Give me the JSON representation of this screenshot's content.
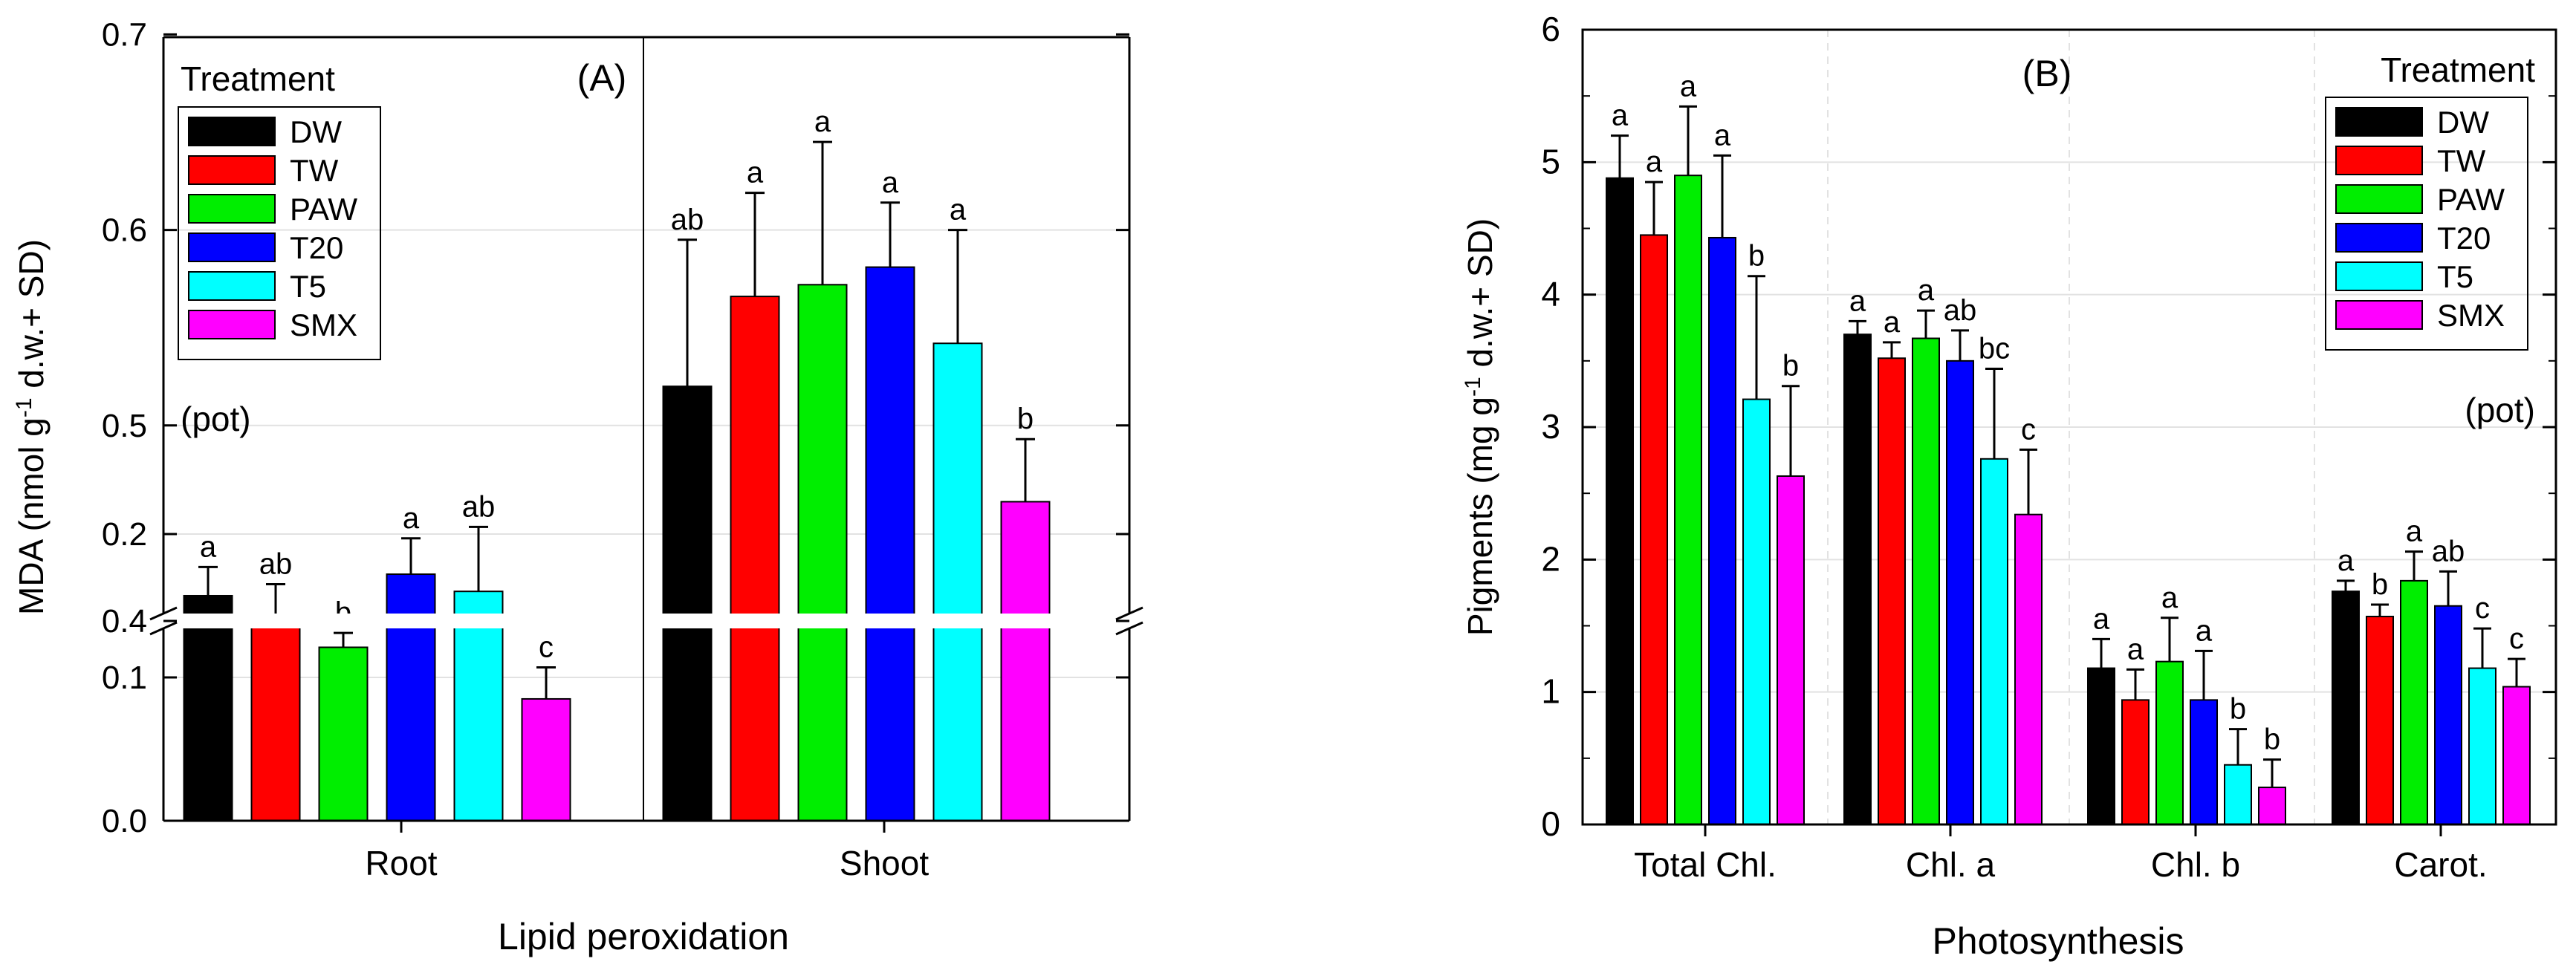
{
  "colors": {
    "DW": "#000000",
    "TW": "#ff0000",
    "PAW": "#00ee00",
    "T20": "#0000ff",
    "T5": "#00ffff",
    "SMX": "#ff00ff"
  },
  "chart_data": [
    {
      "id": "A",
      "type": "bar",
      "panel_label": "(A)",
      "note": "(pot)",
      "title": "",
      "xlabel": "Lipid peroxidation",
      "ylabel_parts": [
        "MDA (nmol g",
        "-1",
        " d.w.+ SD)"
      ],
      "y_broken_axis": {
        "lower_range": [
          0,
          0.27
        ],
        "upper_range": [
          0.4,
          0.7
        ]
      },
      "lower_ticks": [
        "0.0",
        "0.1",
        "0.2"
      ],
      "upper_ticks": [
        "0.4",
        "0.5",
        "0.6",
        "0.7"
      ],
      "legend": {
        "title": "Treatment",
        "placement": "top-left",
        "entries": [
          "DW",
          "TW",
          "PAW",
          "T20",
          "T5",
          "SMX"
        ]
      },
      "categories": [
        "Root",
        "Shoot"
      ],
      "series": [
        {
          "name": "DW",
          "values": [
            0.157,
            0.52
          ],
          "errors": [
            0.02,
            0.075
          ],
          "letters": [
            "a",
            "ab"
          ]
        },
        {
          "name": "TW",
          "values": [
            0.14,
            0.566
          ],
          "errors": [
            0.025,
            0.053
          ],
          "letters": [
            "ab",
            "a"
          ]
        },
        {
          "name": "PAW",
          "values": [
            0.121,
            0.572
          ],
          "errors": [
            0.01,
            0.073
          ],
          "letters": [
            "b",
            "a"
          ]
        },
        {
          "name": "T20",
          "values": [
            0.172,
            0.581
          ],
          "errors": [
            0.025,
            0.033
          ],
          "letters": [
            "a",
            "a"
          ]
        },
        {
          "name": "T5",
          "values": [
            0.16,
            0.542
          ],
          "errors": [
            0.045,
            0.058
          ],
          "letters": [
            "ab",
            "a"
          ]
        },
        {
          "name": "SMX",
          "values": [
            0.085,
            0.461
          ],
          "errors": [
            0.022,
            0.032
          ],
          "letters": [
            "c",
            "b"
          ]
        }
      ]
    },
    {
      "id": "B",
      "type": "bar",
      "panel_label": "(B)",
      "note": "(pot)",
      "title": "",
      "xlabel": "Photosynthesis",
      "ylabel_parts": [
        "Pigments (mg g",
        "-1",
        " d.w.+ SD)"
      ],
      "ylim": [
        0,
        6
      ],
      "ticks": [
        "0",
        "1",
        "2",
        "3",
        "4",
        "5",
        "6"
      ],
      "legend": {
        "title": "Treatment",
        "placement": "top-right",
        "entries": [
          "DW",
          "TW",
          "PAW",
          "T20",
          "T5",
          "SMX"
        ]
      },
      "categories": [
        "Total Chl.",
        "Chl. a",
        "Chl. b",
        "Carot."
      ],
      "series": [
        {
          "name": "DW",
          "values": [
            4.88,
            3.7,
            1.18,
            1.76
          ],
          "errors": [
            0.32,
            0.1,
            0.22,
            0.08
          ],
          "letters": [
            "a",
            "a",
            "a",
            "a"
          ]
        },
        {
          "name": "TW",
          "values": [
            4.45,
            3.52,
            0.94,
            1.57
          ],
          "errors": [
            0.4,
            0.12,
            0.23,
            0.09
          ],
          "letters": [
            "a",
            "a",
            "a",
            "b"
          ]
        },
        {
          "name": "PAW",
          "values": [
            4.9,
            3.67,
            1.23,
            1.84
          ],
          "errors": [
            0.52,
            0.21,
            0.33,
            0.22
          ],
          "letters": [
            "a",
            "a",
            "a",
            "a"
          ]
        },
        {
          "name": "T20",
          "values": [
            4.43,
            3.5,
            0.94,
            1.65
          ],
          "errors": [
            0.62,
            0.23,
            0.37,
            0.26
          ],
          "letters": [
            "a",
            "ab",
            "a",
            "ab"
          ]
        },
        {
          "name": "T5",
          "values": [
            3.21,
            2.76,
            0.45,
            1.18
          ],
          "errors": [
            0.93,
            0.68,
            0.27,
            0.3
          ],
          "letters": [
            "b",
            "bc",
            "b",
            "c"
          ]
        },
        {
          "name": "SMX",
          "values": [
            2.63,
            2.34,
            0.28,
            1.04
          ],
          "errors": [
            0.68,
            0.49,
            0.21,
            0.21
          ],
          "letters": [
            "b",
            "c",
            "b",
            "c"
          ]
        }
      ]
    }
  ]
}
